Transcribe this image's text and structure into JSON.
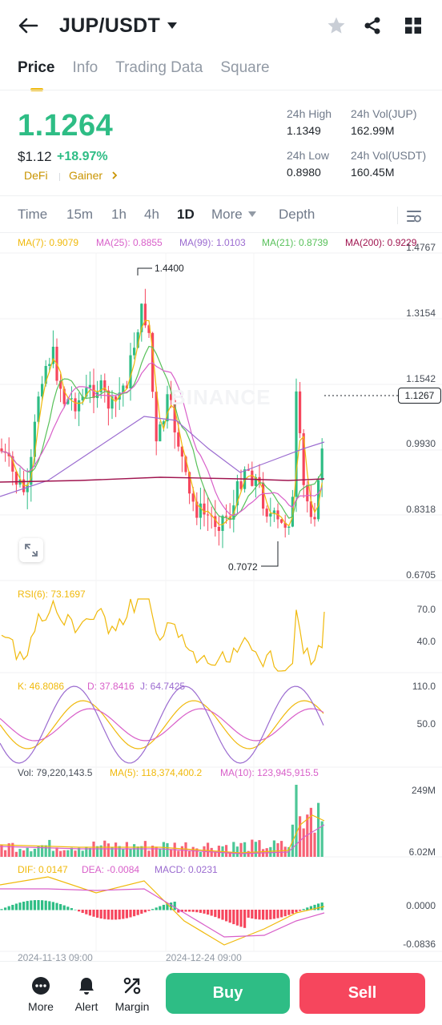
{
  "header": {
    "title": "JUP/USDT",
    "back_icon": "arrow-left-icon",
    "dropdown_icon": "caret-down-icon",
    "favorite_icon": "star-icon",
    "share_icon": "share-icon",
    "grid_icon": "grid-icon"
  },
  "tabs": [
    {
      "label": "Price",
      "active": true
    },
    {
      "label": "Info",
      "active": false
    },
    {
      "label": "Trading Data",
      "active": false
    },
    {
      "label": "Square",
      "active": false
    }
  ],
  "ticker": {
    "price": "1.1264",
    "usd_price": "$1.12",
    "change": "+18.97%",
    "tags": [
      "DeFi",
      "Gainer"
    ],
    "high_label": "24h High",
    "high_value": "1.1349",
    "low_label": "24h Low",
    "low_value": "0.8980",
    "vol_base_label": "24h Vol(JUP)",
    "vol_base_value": "162.99M",
    "vol_quote_label": "24h Vol(USDT)",
    "vol_quote_value": "160.45M"
  },
  "timeframes": {
    "items": [
      "Time",
      "15m",
      "1h",
      "4h",
      "1D",
      "More",
      "Depth"
    ],
    "active": "1D",
    "settings_icon": "chart-settings-icon"
  },
  "ma_legend": [
    {
      "label": "MA(7): 0.9079",
      "color": "#f0b90b"
    },
    {
      "label": "MA(25): 0.8855",
      "color": "#d85fc9"
    },
    {
      "label": "MA(99): 1.0103",
      "color": "#9b6bd0"
    },
    {
      "label": "MA(21): 0.8739",
      "color": "#58c15a"
    },
    {
      "label": "MA(200): 0.9229",
      "color": "#a0144f"
    }
  ],
  "price_axis": [
    "1.4767",
    "1.3154",
    "1.1542",
    "0.9930",
    "0.8318",
    "0.6705"
  ],
  "current_price_tag": "1.1267",
  "high_marker": "1.4400",
  "low_marker": "0.7072",
  "watermark": "BINANCE",
  "rsi": {
    "legend": "RSI(6): 73.1697",
    "axis": [
      "70.0",
      "40.0"
    ]
  },
  "kdj": {
    "legend_k": "K: 46.8086",
    "legend_d": "D: 37.8416",
    "legend_j": "J: 64.7425",
    "axis": [
      "110.0",
      "50.0"
    ]
  },
  "volume": {
    "legend_vol": "Vol: 79,220,143.5",
    "legend_ma5": "MA(5): 118,374,400.2",
    "legend_ma10": "MA(10): 123,945,915.5",
    "axis": [
      "249M",
      "6.02M"
    ]
  },
  "macd": {
    "legend_dif": "DIF: 0.0147",
    "legend_dea": "DEA: -0.0084",
    "legend_macd": "MACD: 0.0231",
    "axis": [
      "0.0000",
      "-0.0836"
    ]
  },
  "dates": [
    "2024-11-13 09:00",
    "2024-12-24 09:00"
  ],
  "colors": {
    "up": "#2ebd85",
    "down": "#f6465d",
    "accent": "#f0b90b"
  },
  "bottom": {
    "more": "More",
    "alert": "Alert",
    "margin": "Margin",
    "buy": "Buy",
    "sell": "Sell"
  }
}
